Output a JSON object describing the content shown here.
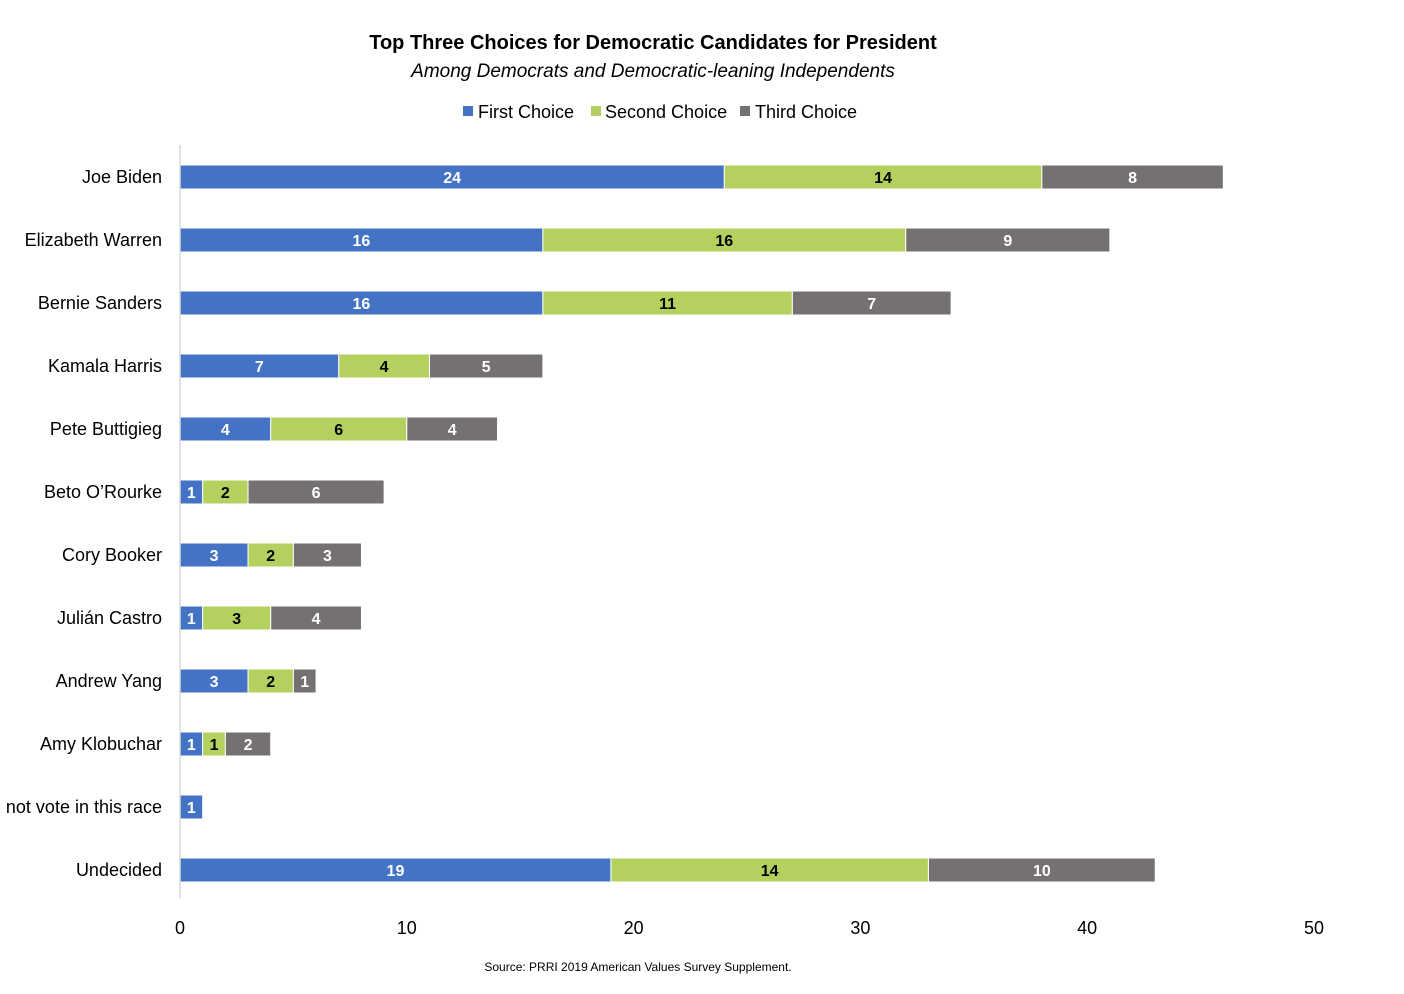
{
  "chart_data": {
    "type": "bar",
    "orientation": "horizontal",
    "stacked": true,
    "title": "Top Three Choices for Democratic Candidates for President",
    "subtitle": "Among Democrats and Democratic-leaning Independents",
    "source": "Source: PRRI 2019 American Values Survey Supplement.",
    "categories": [
      "Joe Biden",
      "Elizabeth Warren",
      "Bernie Sanders",
      "Kamala Harris",
      "Pete Buttigieg",
      "Beto O’Rourke",
      "Cory Booker",
      "Julián Castro",
      "Andrew Yang",
      "Amy Klobuchar",
      "Will not vote in this race",
      "Undecided"
    ],
    "series": [
      {
        "name": "First Choice",
        "color": "#4472C4",
        "label_color": "#ffffff",
        "values": [
          24,
          16,
          16,
          7,
          4,
          1,
          3,
          1,
          3,
          1,
          1,
          19
        ]
      },
      {
        "name": "Second Choice",
        "color": "#B4D05F",
        "label_color": "#000000",
        "values": [
          14,
          16,
          11,
          4,
          6,
          2,
          2,
          3,
          2,
          1,
          0,
          14
        ]
      },
      {
        "name": "Third Choice",
        "color": "#767171",
        "label_color": "#ffffff",
        "values": [
          8,
          9,
          7,
          5,
          4,
          6,
          3,
          4,
          1,
          2,
          0,
          10
        ]
      }
    ],
    "xlim": [
      0,
      50
    ],
    "xticks": [
      0,
      10,
      20,
      30,
      40,
      50
    ],
    "xlabel": "",
    "ylabel": "",
    "grid": false,
    "legend_position": "top"
  }
}
